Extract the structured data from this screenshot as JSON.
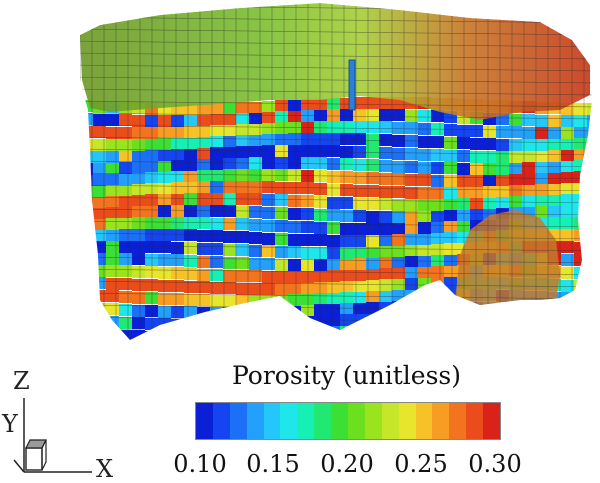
{
  "axes_triad": {
    "x": "X",
    "y": "Y",
    "z": "Z"
  },
  "colorbar": {
    "title": "Porosity (unitless)",
    "ticks": [
      "0.10",
      "0.15",
      "0.20",
      "0.25",
      "0.30"
    ],
    "range": [
      0.1,
      0.3
    ],
    "colors": [
      "#0a1fd6",
      "#1445f0",
      "#1c6ff7",
      "#22a0fb",
      "#25c7fb",
      "#1fe6ea",
      "#16f0b4",
      "#21e870",
      "#3cdf34",
      "#6ce01e",
      "#9ae41f",
      "#c6e62a",
      "#e7e52c",
      "#f6c227",
      "#f79d24",
      "#f3741f",
      "#ea4c1c",
      "#d9231a"
    ]
  },
  "model": {
    "color_scheme": "porosity",
    "features": [
      "layered reservoir grid",
      "well bore",
      "cut-away cavity"
    ]
  }
}
